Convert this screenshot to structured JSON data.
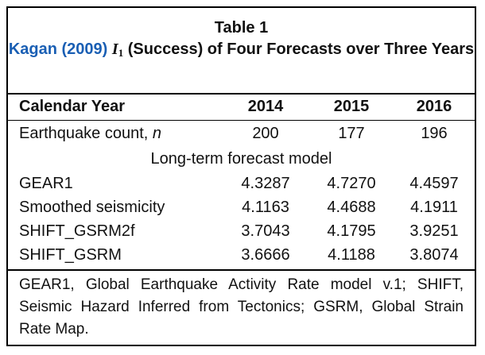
{
  "table": {
    "heading": "Table 1",
    "caption": {
      "cite": "Kagan (2009)",
      "symbol": "I",
      "symbol_sub": "1",
      "rest": " (Success) of Four Forecasts over Three Years"
    },
    "columns": [
      "Calendar Year",
      "2014",
      "2015",
      "2016"
    ],
    "earthquake_count": {
      "label_prefix": "Earthquake count, ",
      "label_var": "n",
      "values": [
        "200",
        "177",
        "196"
      ]
    },
    "section_label": "Long-term forecast model",
    "rows": [
      {
        "model": "GEAR1",
        "values": [
          "4.3287",
          "4.7270",
          "4.4597"
        ]
      },
      {
        "model": "Smoothed seismicity",
        "values": [
          "4.1163",
          "4.4688",
          "4.1911"
        ]
      },
      {
        "model": "SHIFT_GSRM2f",
        "values": [
          "3.7043",
          "4.1795",
          "3.9251"
        ]
      },
      {
        "model": "SHIFT_GSRM",
        "values": [
          "3.6666",
          "4.1188",
          "3.8074"
        ]
      }
    ],
    "footnote": "GEAR1, Global Earthquake Activity Rate model v.1; SHIFT, Seismic Hazard Inferred from Tectonics; GSRM, Global Strain Rate Map."
  },
  "colors": {
    "citation": "#1a5fb4",
    "text": "#111111",
    "border": "#000000"
  }
}
